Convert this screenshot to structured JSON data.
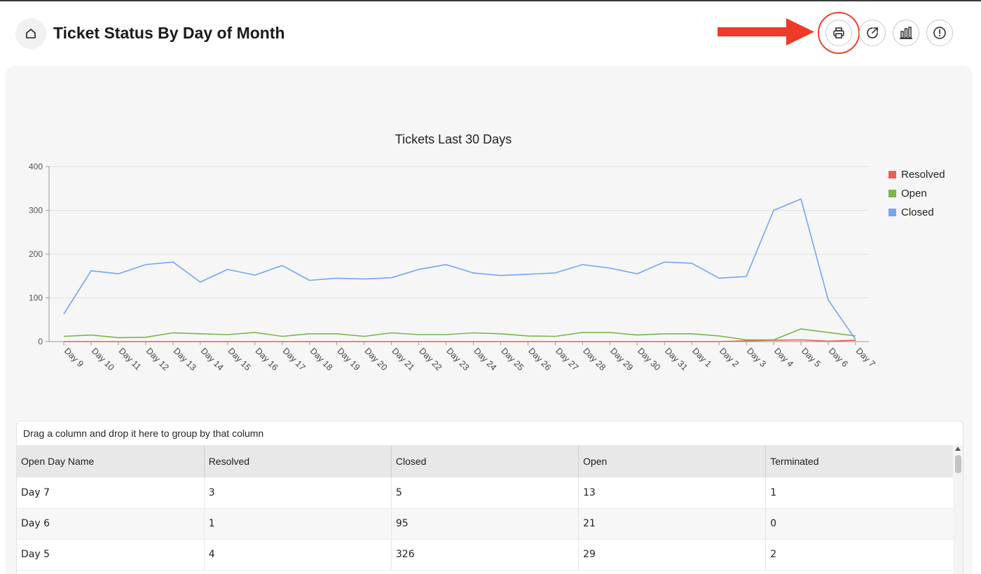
{
  "header": {
    "title": "Ticket Status By Day of Month",
    "edge_glyph": ")",
    "icons": {
      "home": "home-icon",
      "print": "printer-icon",
      "export": "external-link-icon",
      "chart": "bar-chart-icon",
      "info": "alert-circle-icon"
    },
    "annotation_color": "#e8442f"
  },
  "chart_data": {
    "type": "line",
    "title": "Tickets Last 30 Days",
    "categories": [
      "Day 9",
      "Day 10",
      "Day 11",
      "Day 12",
      "Day 13",
      "Day 14",
      "Day 15",
      "Day 16",
      "Day 17",
      "Day 18",
      "Day 19",
      "Day 20",
      "Day 21",
      "Day 22",
      "Day 23",
      "Day 24",
      "Day 25",
      "Day 26",
      "Day 27",
      "Day 28",
      "Day 29",
      "Day 30",
      "Day 31",
      "Day 1",
      "Day 2",
      "Day 3",
      "Day 4",
      "Day 5",
      "Day 6",
      "Day 7"
    ],
    "series": [
      {
        "name": "Resolved",
        "color": "#e9614f",
        "values": [
          0,
          0,
          0,
          0,
          0,
          0,
          0,
          0,
          0,
          0,
          0,
          0,
          0,
          0,
          0,
          0,
          0,
          0,
          0,
          0,
          0,
          0,
          0,
          0,
          0,
          2,
          3,
          4,
          1,
          3
        ]
      },
      {
        "name": "Open",
        "color": "#7ab648",
        "values": [
          12,
          15,
          9,
          10,
          20,
          18,
          16,
          21,
          12,
          18,
          18,
          12,
          20,
          16,
          16,
          20,
          18,
          13,
          12,
          21,
          21,
          15,
          18,
          18,
          13,
          4,
          4,
          29,
          21,
          13
        ]
      },
      {
        "name": "Closed",
        "color": "#73a6f2",
        "values": [
          63,
          162,
          155,
          176,
          182,
          136,
          165,
          152,
          174,
          140,
          145,
          143,
          146,
          165,
          176,
          157,
          151,
          154,
          157,
          176,
          168,
          155,
          182,
          179,
          145,
          149,
          300,
          326,
          95,
          5
        ]
      }
    ],
    "yticks": [
      0,
      100,
      200,
      300,
      400
    ],
    "ylim": [
      0,
      400
    ],
    "grid": true,
    "legend": "right"
  },
  "grid": {
    "group_hint": "Drag a column and drop it here to group by that column",
    "columns": [
      "Open Day Name",
      "Resolved",
      "Closed",
      "Open",
      "Terminated"
    ],
    "rows": [
      [
        "Day 7",
        "3",
        "5",
        "13",
        "1"
      ],
      [
        "Day 6",
        "1",
        "95",
        "21",
        "0"
      ],
      [
        "Day 5",
        "4",
        "326",
        "29",
        "2"
      ]
    ]
  }
}
